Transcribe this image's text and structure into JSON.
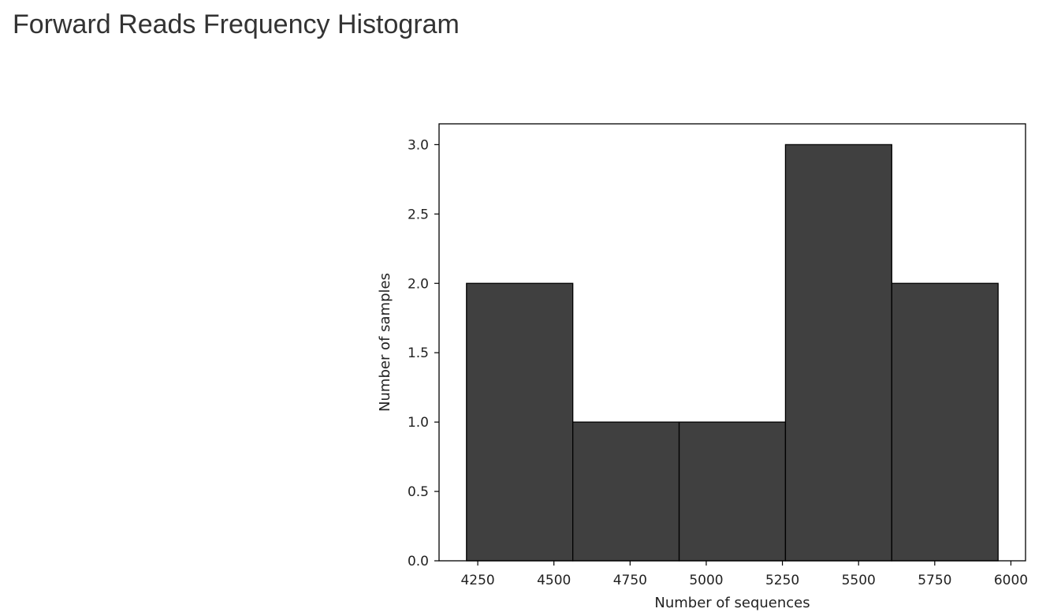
{
  "page": {
    "title": "Forward Reads Frequency Histogram"
  },
  "chart_data": {
    "type": "bar",
    "title": "",
    "xlabel": "Number of sequences",
    "ylabel": "Number of samples",
    "bin_edges": [
      4213,
      4562,
      4911,
      5260,
      5609,
      5958
    ],
    "values": [
      2,
      1,
      1,
      3,
      2
    ],
    "xlim": [
      4123,
      6048
    ],
    "ylim": [
      0,
      3.15
    ],
    "x_ticks": [
      4250,
      4500,
      4750,
      5000,
      5250,
      5500,
      5750,
      6000
    ],
    "y_ticks": [
      0.0,
      0.5,
      1.0,
      1.5,
      2.0,
      2.5,
      3.0
    ],
    "bar_color": "#404040",
    "edge_color": "#000000",
    "grid": false
  }
}
